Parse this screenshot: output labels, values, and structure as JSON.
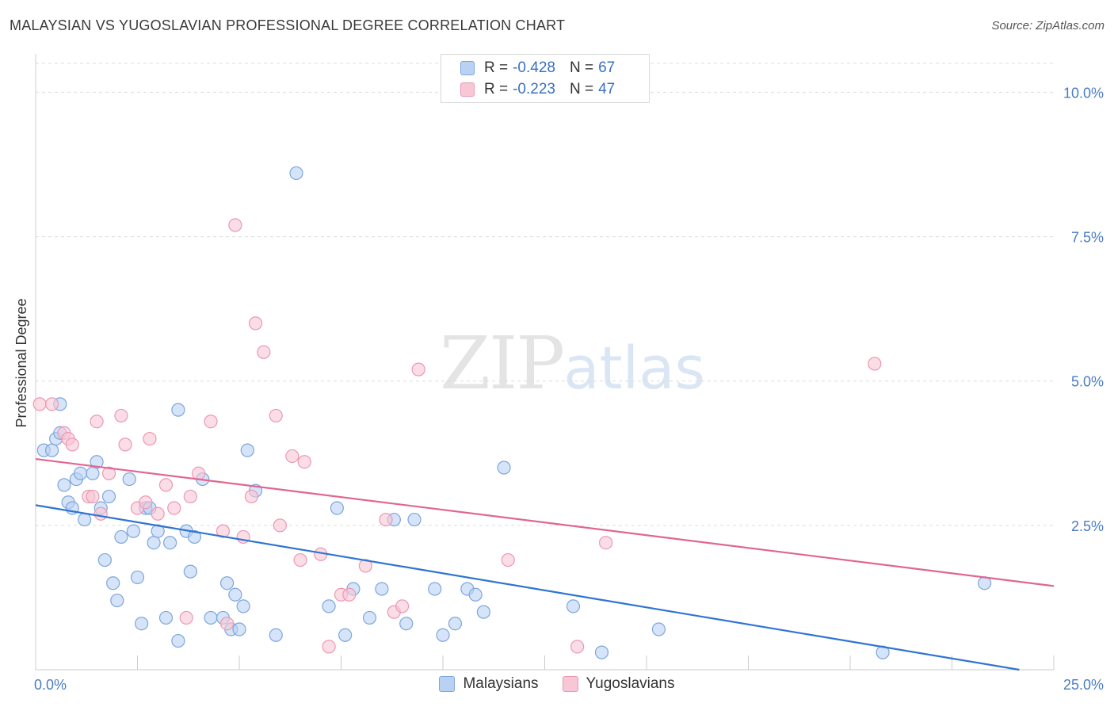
{
  "title": "MALAYSIAN VS YUGOSLAVIAN PROFESSIONAL DEGREE CORRELATION CHART",
  "source": "Source: ZipAtlas.com",
  "watermark": {
    "zip": "ZIP",
    "atlas": "atlas"
  },
  "colors": {
    "blue_fill": "#b9d2f3",
    "blue_stroke": "#7ea6dc",
    "blue_line": "#2f74d0",
    "pink_fill": "#f9c6d5",
    "pink_stroke": "#eb98b3",
    "pink_line": "#e06690",
    "grid": "#dddddd",
    "tick_text": "#4a7cc4"
  },
  "legend_top": [
    {
      "r_label": "R =",
      "r_value": "-0.428",
      "n_label": "N =",
      "n_value": "67"
    },
    {
      "r_label": "R =",
      "r_value": "-0.223",
      "n_label": "N =",
      "n_value": "47"
    }
  ],
  "legend_bottom": [
    "Malaysians",
    "Yugoslavians"
  ],
  "chart_data": {
    "type": "scatter",
    "ylabel": "Professional Degree",
    "xlim": [
      0,
      25
    ],
    "ylim": [
      0,
      10.5
    ],
    "x_tick_labels": [
      "0.0%",
      "25.0%"
    ],
    "y_ticks": [
      2.5,
      5.0,
      7.5,
      10.0
    ],
    "y_tick_labels": [
      "2.5%",
      "5.0%",
      "7.5%",
      "10.0%"
    ],
    "grid": true,
    "legend_placement": "top-center",
    "series": [
      {
        "name": "Malaysians",
        "points": [
          [
            0.2,
            3.8
          ],
          [
            0.4,
            3.8
          ],
          [
            0.5,
            4.0
          ],
          [
            0.6,
            4.1
          ],
          [
            0.6,
            4.6
          ],
          [
            0.7,
            3.2
          ],
          [
            0.8,
            2.9
          ],
          [
            0.9,
            2.8
          ],
          [
            1.0,
            3.3
          ],
          [
            1.1,
            3.4
          ],
          [
            1.2,
            2.6
          ],
          [
            1.4,
            3.4
          ],
          [
            1.5,
            3.6
          ],
          [
            1.6,
            2.8
          ],
          [
            1.7,
            1.9
          ],
          [
            1.8,
            3.0
          ],
          [
            1.9,
            1.5
          ],
          [
            2.0,
            1.2
          ],
          [
            2.1,
            2.3
          ],
          [
            2.3,
            3.3
          ],
          [
            2.4,
            2.4
          ],
          [
            2.5,
            1.6
          ],
          [
            2.6,
            0.8
          ],
          [
            2.7,
            2.8
          ],
          [
            2.8,
            2.8
          ],
          [
            2.9,
            2.2
          ],
          [
            3.0,
            2.4
          ],
          [
            3.2,
            0.9
          ],
          [
            3.3,
            2.2
          ],
          [
            3.5,
            4.5
          ],
          [
            3.5,
            0.5
          ],
          [
            3.7,
            2.4
          ],
          [
            3.8,
            1.7
          ],
          [
            3.9,
            2.3
          ],
          [
            4.1,
            3.3
          ],
          [
            4.3,
            0.9
          ],
          [
            4.6,
            0.9
          ],
          [
            4.7,
            1.5
          ],
          [
            4.8,
            0.7
          ],
          [
            4.9,
            1.3
          ],
          [
            5.0,
            0.7
          ],
          [
            5.1,
            1.1
          ],
          [
            5.2,
            3.8
          ],
          [
            5.4,
            3.1
          ],
          [
            5.9,
            0.6
          ],
          [
            6.4,
            8.6
          ],
          [
            7.2,
            1.1
          ],
          [
            7.4,
            2.8
          ],
          [
            7.6,
            0.6
          ],
          [
            7.8,
            1.4
          ],
          [
            8.2,
            0.9
          ],
          [
            8.5,
            1.4
          ],
          [
            8.8,
            2.6
          ],
          [
            9.1,
            0.8
          ],
          [
            9.3,
            2.6
          ],
          [
            9.8,
            1.4
          ],
          [
            10.0,
            0.6
          ],
          [
            10.3,
            0.8
          ],
          [
            10.6,
            1.4
          ],
          [
            10.8,
            1.3
          ],
          [
            11.0,
            1.0
          ],
          [
            11.5,
            3.5
          ],
          [
            13.2,
            1.1
          ],
          [
            13.9,
            0.3
          ],
          [
            15.3,
            0.7
          ],
          [
            20.8,
            0.3
          ],
          [
            23.3,
            1.5
          ]
        ],
        "trend": {
          "x": [
            0,
            25
          ],
          "y": [
            2.85,
            -0.1
          ]
        }
      },
      {
        "name": "Yugoslavians",
        "points": [
          [
            0.1,
            4.6
          ],
          [
            0.4,
            4.6
          ],
          [
            0.7,
            4.1
          ],
          [
            0.8,
            4.0
          ],
          [
            0.9,
            3.9
          ],
          [
            1.3,
            3.0
          ],
          [
            1.4,
            3.0
          ],
          [
            1.5,
            4.3
          ],
          [
            1.6,
            2.7
          ],
          [
            1.8,
            3.4
          ],
          [
            2.1,
            4.4
          ],
          [
            2.2,
            3.9
          ],
          [
            2.5,
            2.8
          ],
          [
            2.7,
            2.9
          ],
          [
            2.8,
            4.0
          ],
          [
            3.0,
            2.7
          ],
          [
            3.2,
            3.2
          ],
          [
            3.4,
            2.8
          ],
          [
            3.7,
            0.9
          ],
          [
            3.8,
            3.0
          ],
          [
            4.0,
            3.4
          ],
          [
            4.3,
            4.3
          ],
          [
            4.6,
            2.4
          ],
          [
            4.7,
            0.8
          ],
          [
            4.9,
            7.7
          ],
          [
            5.1,
            2.3
          ],
          [
            5.3,
            3.0
          ],
          [
            5.4,
            6.0
          ],
          [
            5.6,
            5.5
          ],
          [
            5.9,
            4.4
          ],
          [
            6.0,
            2.5
          ],
          [
            6.3,
            3.7
          ],
          [
            6.5,
            1.9
          ],
          [
            6.6,
            3.6
          ],
          [
            7.0,
            2.0
          ],
          [
            7.2,
            0.4
          ],
          [
            7.5,
            1.3
          ],
          [
            7.7,
            1.3
          ],
          [
            8.1,
            1.8
          ],
          [
            8.6,
            2.6
          ],
          [
            8.8,
            1.0
          ],
          [
            9.0,
            1.1
          ],
          [
            9.4,
            5.2
          ],
          [
            11.6,
            1.9
          ],
          [
            13.3,
            0.4
          ],
          [
            14.0,
            2.2
          ],
          [
            20.6,
            5.3
          ]
        ],
        "trend": {
          "x": [
            0,
            25
          ],
          "y": [
            3.65,
            1.45
          ]
        }
      }
    ]
  }
}
